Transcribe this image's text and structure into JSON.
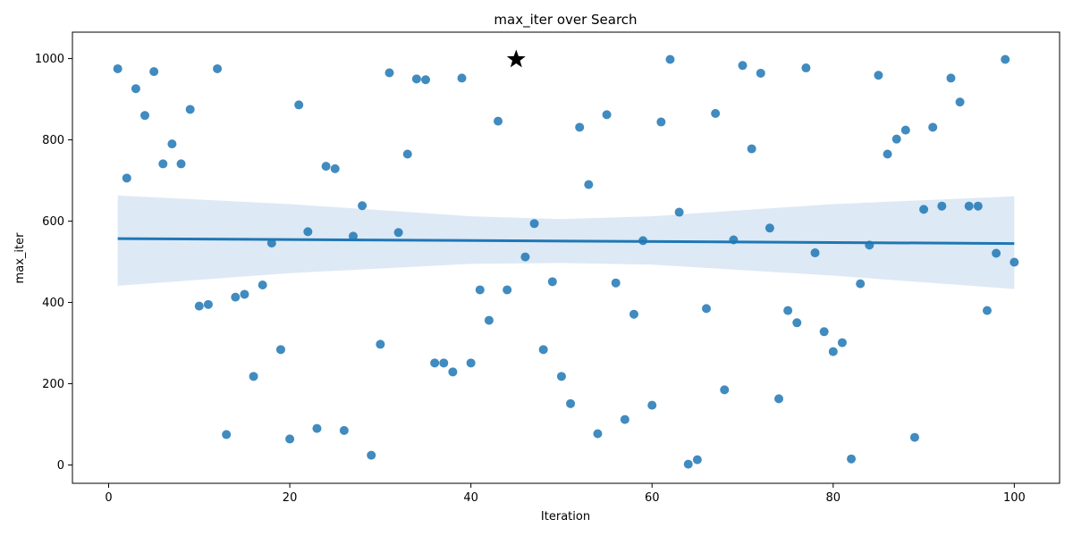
{
  "chart_data": {
    "type": "scatter",
    "title": "max_iter over Search",
    "xlabel": "Iteration",
    "ylabel": "max_iter",
    "xlim": [
      -4,
      105
    ],
    "ylim": [
      -45,
      1065
    ],
    "x_ticks": [
      0,
      20,
      40,
      60,
      80,
      100
    ],
    "y_ticks": [
      0,
      200,
      400,
      600,
      800,
      1000
    ],
    "grid": false,
    "point_color": "#1f77b4",
    "band_color": "#c6dbef",
    "series": [
      {
        "x": [
          1,
          2,
          3,
          4,
          5,
          6,
          7,
          8,
          9,
          10,
          11,
          12,
          13,
          14,
          15,
          16,
          17,
          18,
          19,
          20,
          21,
          22,
          23,
          24,
          25,
          26,
          27,
          28,
          29,
          30,
          31,
          32,
          33,
          34,
          35,
          36,
          37,
          38,
          39,
          40,
          41,
          42,
          43,
          44,
          45,
          46,
          47,
          48,
          49,
          50,
          51,
          52,
          53,
          54,
          55,
          56,
          57,
          58,
          59,
          60,
          61,
          62,
          63,
          64,
          65,
          66,
          67,
          68,
          69,
          70,
          71,
          72,
          73,
          74,
          75,
          76,
          77,
          78,
          79,
          80,
          81,
          82,
          83,
          84,
          85,
          86,
          87,
          88,
          89,
          90,
          91,
          92,
          93,
          94,
          95,
          96,
          97,
          98,
          99,
          100
        ],
        "y": [
          975,
          706,
          926,
          860,
          968,
          741,
          790,
          741,
          875,
          391,
          395,
          975,
          75,
          413,
          420,
          218,
          443,
          546,
          284,
          64,
          886,
          574,
          90,
          735,
          729,
          85,
          563,
          638,
          24,
          297,
          965,
          572,
          765,
          950,
          948,
          251,
          251,
          229,
          952,
          251,
          431,
          356,
          846,
          431,
          null,
          512,
          594,
          284,
          451,
          218,
          151,
          831,
          690,
          77,
          862,
          448,
          112,
          371,
          552,
          147,
          844,
          998,
          622,
          2,
          13,
          385,
          865,
          185,
          554,
          983,
          778,
          964,
          583,
          163,
          380,
          350,
          977,
          522,
          328,
          279,
          301,
          15,
          446,
          541,
          959,
          765,
          802,
          824,
          68,
          629,
          831,
          637,
          952,
          893,
          637,
          637,
          380,
          521,
          998,
          499
        ]
      }
    ],
    "best_point": {
      "x": 45,
      "y": 998
    },
    "regression": {
      "start": {
        "x": 1,
        "y": 557
      },
      "end": {
        "x": 100,
        "y": 545
      },
      "ci_upper": [
        [
          1,
          663
        ],
        [
          20,
          642
        ],
        [
          40,
          612
        ],
        [
          50,
          605
        ],
        [
          60,
          612
        ],
        [
          80,
          642
        ],
        [
          100,
          661
        ]
      ],
      "ci_lower": [
        [
          1,
          441
        ],
        [
          20,
          472
        ],
        [
          40,
          495
        ],
        [
          50,
          497
        ],
        [
          60,
          493
        ],
        [
          80,
          466
        ],
        [
          100,
          433
        ]
      ]
    }
  }
}
